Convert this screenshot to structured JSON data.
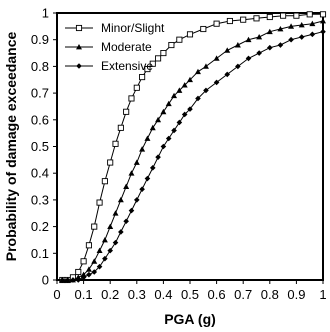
{
  "chart_data": {
    "type": "line",
    "title": "",
    "xlabel": "PGA (g)",
    "ylabel": "Probability of damage exceedance",
    "xlim": [
      0,
      1
    ],
    "ylim": [
      0,
      1
    ],
    "x_ticks": [
      0,
      0.1,
      0.2,
      0.3,
      0.4,
      0.5,
      0.6,
      0.7,
      0.8,
      0.9,
      1
    ],
    "x_tick_labels": [
      "0",
      "0.1",
      "0.2",
      "0.3",
      "0.4",
      "0.5",
      "0.6",
      "0.7",
      "0.8",
      "0.9",
      "1"
    ],
    "y_ticks": [
      0,
      0.1,
      0.2,
      0.3,
      0.4,
      0.5,
      0.6,
      0.7,
      0.8,
      0.9,
      1
    ],
    "y_tick_labels": [
      "0",
      "0.1",
      "0.2",
      "0.3",
      "0.4",
      "0.5",
      "0.6",
      "0.7",
      "0.8",
      "0.9",
      "1"
    ],
    "grid": false,
    "legend_position": "top-left",
    "series": [
      {
        "name": "Minor/Slight",
        "marker": "open-square",
        "x": [
          0.02,
          0.04,
          0.06,
          0.08,
          0.1,
          0.12,
          0.14,
          0.16,
          0.18,
          0.2,
          0.22,
          0.24,
          0.26,
          0.28,
          0.3,
          0.32,
          0.34,
          0.36,
          0.38,
          0.4,
          0.43,
          0.46,
          0.5,
          0.55,
          0.6,
          0.65,
          0.7,
          0.75,
          0.8,
          0.85,
          0.9,
          0.95,
          1.0
        ],
        "y": [
          0.0,
          0.0,
          0.01,
          0.03,
          0.07,
          0.13,
          0.2,
          0.29,
          0.37,
          0.44,
          0.51,
          0.57,
          0.63,
          0.68,
          0.72,
          0.76,
          0.79,
          0.81,
          0.83,
          0.85,
          0.88,
          0.9,
          0.92,
          0.94,
          0.96,
          0.97,
          0.975,
          0.98,
          0.985,
          0.99,
          0.99,
          0.995,
          0.995
        ]
      },
      {
        "name": "Moderate",
        "marker": "filled-triangle",
        "x": [
          0.02,
          0.04,
          0.06,
          0.08,
          0.1,
          0.12,
          0.14,
          0.16,
          0.18,
          0.2,
          0.22,
          0.24,
          0.26,
          0.28,
          0.3,
          0.32,
          0.34,
          0.36,
          0.38,
          0.4,
          0.42,
          0.44,
          0.46,
          0.48,
          0.5,
          0.53,
          0.56,
          0.6,
          0.64,
          0.68,
          0.72,
          0.76,
          0.8,
          0.84,
          0.88,
          0.92,
          0.96,
          1.0
        ],
        "y": [
          0.0,
          0.0,
          0.0,
          0.01,
          0.02,
          0.04,
          0.07,
          0.11,
          0.15,
          0.2,
          0.25,
          0.3,
          0.35,
          0.4,
          0.44,
          0.49,
          0.53,
          0.57,
          0.6,
          0.63,
          0.66,
          0.69,
          0.71,
          0.73,
          0.75,
          0.78,
          0.8,
          0.83,
          0.86,
          0.88,
          0.9,
          0.91,
          0.93,
          0.94,
          0.95,
          0.955,
          0.96,
          0.97
        ]
      },
      {
        "name": "Extensive",
        "marker": "filled-diamond",
        "x": [
          0.02,
          0.04,
          0.06,
          0.08,
          0.1,
          0.12,
          0.14,
          0.16,
          0.18,
          0.2,
          0.22,
          0.24,
          0.26,
          0.28,
          0.3,
          0.32,
          0.34,
          0.36,
          0.38,
          0.4,
          0.42,
          0.44,
          0.46,
          0.48,
          0.5,
          0.53,
          0.56,
          0.6,
          0.64,
          0.68,
          0.72,
          0.76,
          0.8,
          0.84,
          0.88,
          0.92,
          0.96,
          1.0
        ],
        "y": [
          0.0,
          0.0,
          0.0,
          0.0,
          0.01,
          0.02,
          0.03,
          0.05,
          0.08,
          0.11,
          0.14,
          0.18,
          0.22,
          0.26,
          0.3,
          0.34,
          0.38,
          0.42,
          0.46,
          0.5,
          0.53,
          0.56,
          0.59,
          0.62,
          0.64,
          0.68,
          0.71,
          0.74,
          0.77,
          0.8,
          0.83,
          0.85,
          0.87,
          0.88,
          0.9,
          0.91,
          0.92,
          0.93
        ]
      }
    ]
  }
}
